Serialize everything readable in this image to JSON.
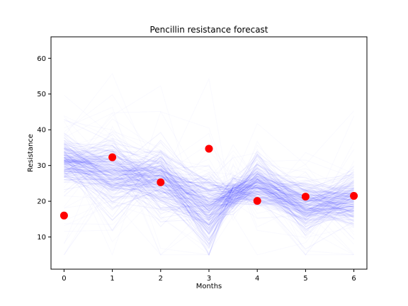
{
  "chart_data": {
    "type": "line",
    "title": "Pencillin resistance forecast",
    "xlabel": "Months",
    "ylabel": "Resistance",
    "xlim": [
      -0.27,
      6.27
    ],
    "ylim": [
      1,
      66
    ],
    "xticks": [
      0,
      1,
      2,
      3,
      4,
      5,
      6
    ],
    "yticks": [
      10,
      20,
      30,
      40,
      50,
      60
    ],
    "grid": false,
    "observed": {
      "x": [
        0,
        1,
        2,
        3,
        4,
        5,
        6
      ],
      "y": [
        16,
        32.3,
        25.3,
        34.7,
        20.1,
        21.3,
        21.5
      ],
      "color": "#ff0000"
    },
    "forecast_band": {
      "color": "#0000ff",
      "x": [
        0,
        1,
        2,
        3,
        3.5,
        4,
        5,
        6
      ],
      "center": [
        31.5,
        27.5,
        26,
        18,
        22,
        25,
        18.5,
        20.5
      ],
      "spread": [
        3,
        4.5,
        5,
        5,
        2,
        3.5,
        3.5,
        4
      ]
    }
  }
}
